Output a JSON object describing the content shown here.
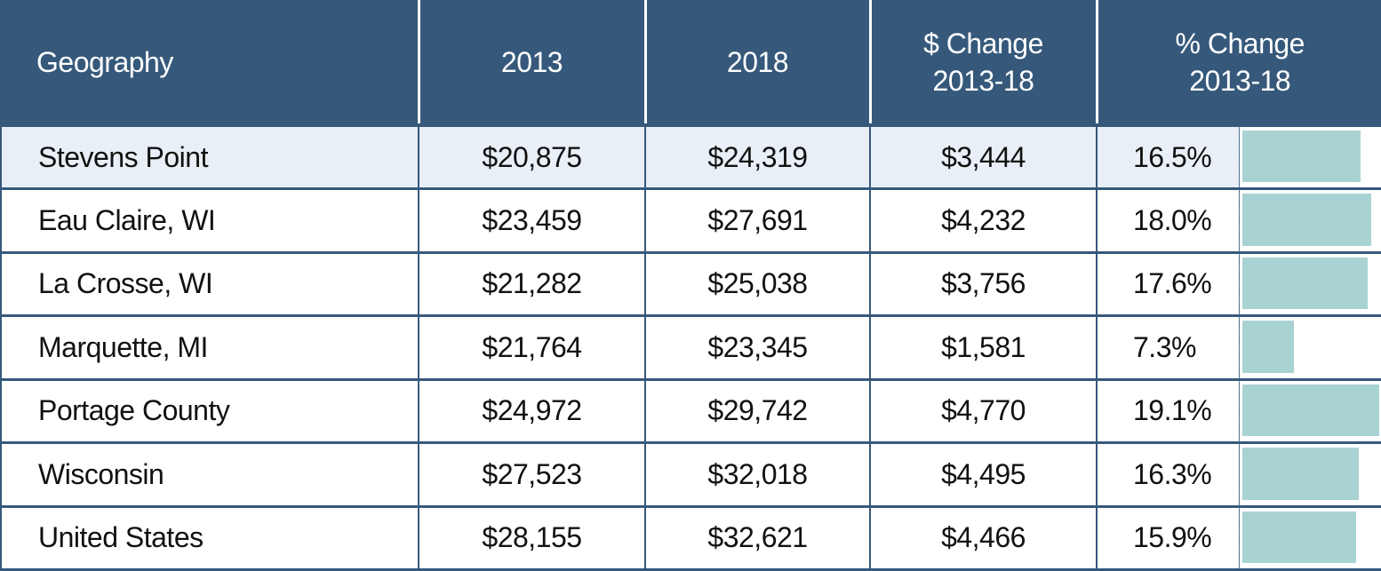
{
  "chart_data": {
    "type": "table",
    "columns": [
      "Geography",
      "2013",
      "2018",
      "$ Change 2013-18",
      "% Change 2013-18"
    ],
    "header": {
      "geography": "Geography",
      "y2013": "2013",
      "y2018": "2018",
      "dollar_change_line1": "$ Change",
      "dollar_change_line2": "2013-18",
      "pct_change_line1": "% Change",
      "pct_change_line2": "2013-18"
    },
    "rows": [
      {
        "geography": "Stevens Point",
        "y2013": "$20,875",
        "y2018": "$24,319",
        "dollar_change": "$3,444",
        "pct_change": "16.5%",
        "pct_value": 16.5,
        "highlight": true
      },
      {
        "geography": "Eau Claire, WI",
        "y2013": "$23,459",
        "y2018": "$27,691",
        "dollar_change": "$4,232",
        "pct_change": "18.0%",
        "pct_value": 18.0,
        "highlight": false
      },
      {
        "geography": "La Crosse, WI",
        "y2013": "$21,282",
        "y2018": "$25,038",
        "dollar_change": "$3,756",
        "pct_change": "17.6%",
        "pct_value": 17.6,
        "highlight": false
      },
      {
        "geography": "Marquette, MI",
        "y2013": "$21,764",
        "y2018": "$23,345",
        "dollar_change": "$1,581",
        "pct_change": "7.3%",
        "pct_value": 7.3,
        "highlight": false
      },
      {
        "geography": "Portage County",
        "y2013": "$24,972",
        "y2018": "$29,742",
        "dollar_change": "$4,770",
        "pct_change": "19.1%",
        "pct_value": 19.1,
        "highlight": false
      },
      {
        "geography": "Wisconsin",
        "y2013": "$27,523",
        "y2018": "$32,018",
        "dollar_change": "$4,495",
        "pct_change": "16.3%",
        "pct_value": 16.3,
        "highlight": false
      },
      {
        "geography": "United States",
        "y2013": "$28,155",
        "y2018": "$32,621",
        "dollar_change": "$4,466",
        "pct_change": "15.9%",
        "pct_value": 15.9,
        "highlight": false
      }
    ],
    "bar_max": 19.1,
    "colors": {
      "header_bg": "#36597b",
      "highlight_row": "#e8eff6",
      "bar_fill": "#a9d2d3"
    }
  }
}
